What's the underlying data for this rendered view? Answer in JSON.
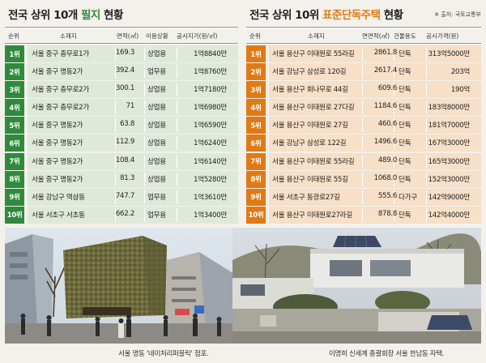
{
  "left": {
    "title_pre": "전국 상위 10개 ",
    "title_hl": "필지",
    "title_post": " 현황",
    "headers": {
      "rank": "순위",
      "location": "소재지",
      "area": "면적(㎡)",
      "usage": "이용상황",
      "price": "공시지가(원/㎡)"
    },
    "rows": [
      {
        "rank": "1위",
        "location": "서울 중구 충무로1가",
        "area": "169.3",
        "usage": "상업용",
        "price": "1억8840만"
      },
      {
        "rank": "2위",
        "location": "서울 중구 명동2가",
        "area": "392.4",
        "usage": "업무용",
        "price": "1억8760만"
      },
      {
        "rank": "3위",
        "location": "서울 중구 충무로2가",
        "area": "300.1",
        "usage": "상업용",
        "price": "1억7180만"
      },
      {
        "rank": "4위",
        "location": "서울 중구 충무로2가",
        "area": "71",
        "usage": "상업용",
        "price": "1억6980만"
      },
      {
        "rank": "5위",
        "location": "서울 중구 명동2가",
        "area": "63.8",
        "usage": "상업용",
        "price": "1억6590만"
      },
      {
        "rank": "6위",
        "location": "서울 중구 명동2가",
        "area": "112.9",
        "usage": "상업용",
        "price": "1억6240만"
      },
      {
        "rank": "7위",
        "location": "서울 중구 명동2가",
        "area": "108.4",
        "usage": "상업용",
        "price": "1억6140만"
      },
      {
        "rank": "8위",
        "location": "서울 중구 명동2가",
        "area": "81.3",
        "usage": "상업용",
        "price": "1억5280만"
      },
      {
        "rank": "9위",
        "location": "서울 강남구 역삼동",
        "area": "747.7",
        "usage": "업무용",
        "price": "1억3610만"
      },
      {
        "rank": "10위",
        "location": "서울 서초구 서초동",
        "area": "662.2",
        "usage": "업무용",
        "price": "1억3400만"
      }
    ],
    "caption": "서울 명동 '네이처리퍼블릭' 점포."
  },
  "right": {
    "title_pre": "전국 상위 10위 ",
    "title_hl": "표준단독주택",
    "title_post": " 현황",
    "source": "※ 출처: 국토교통부",
    "headers": {
      "rank": "순위",
      "location": "소재지",
      "area": "연면적(㎡)",
      "usage": "건물용도",
      "price": "공시가격(원)"
    },
    "rows": [
      {
        "rank": "1위",
        "location": "서울 용산구 이태원로 55라길",
        "area": "2861.8",
        "usage": "단독",
        "price": "313억5000만"
      },
      {
        "rank": "2위",
        "location": "서울 강남구 삼성로 120길",
        "area": "2617.4",
        "usage": "단독",
        "price": "203억"
      },
      {
        "rank": "3위",
        "location": "서울 용산구 회나무로 44길",
        "area": "609.6",
        "usage": "단독",
        "price": "190억"
      },
      {
        "rank": "4위",
        "location": "서울 용산구 이태원로 27다길",
        "area": "1184.6",
        "usage": "단독",
        "price": "183억8000만"
      },
      {
        "rank": "5위",
        "location": "서울 용산구 이태원로 27길",
        "area": "460.6",
        "usage": "단독",
        "price": "181억7000만"
      },
      {
        "rank": "6위",
        "location": "서울 강남구 삼성로 122길",
        "area": "1496.6",
        "usage": "단독",
        "price": "167억3000만"
      },
      {
        "rank": "7위",
        "location": "서울 용산구 이태원로 55라길",
        "area": "489.0",
        "usage": "단독",
        "price": "165억3000만"
      },
      {
        "rank": "8위",
        "location": "서울 용산구 이태원로 55길",
        "area": "1068.0",
        "usage": "단독",
        "price": "152억3000만"
      },
      {
        "rank": "9위",
        "location": "서울 서초구 동광로27길",
        "area": "555.6",
        "usage": "다가구",
        "price": "142억9000만"
      },
      {
        "rank": "10위",
        "location": "서울 용산구 이태원로27라길",
        "area": "878.8",
        "usage": "단독",
        "price": "142억4000만"
      }
    ],
    "caption": "이명희 신세계 총괄회장 서울 한남동 자택."
  },
  "colors": {
    "green": "#2f8a3c",
    "green_row": "#dfe9da",
    "orange": "#e07a14",
    "orange_row": "#f7dfc8"
  }
}
